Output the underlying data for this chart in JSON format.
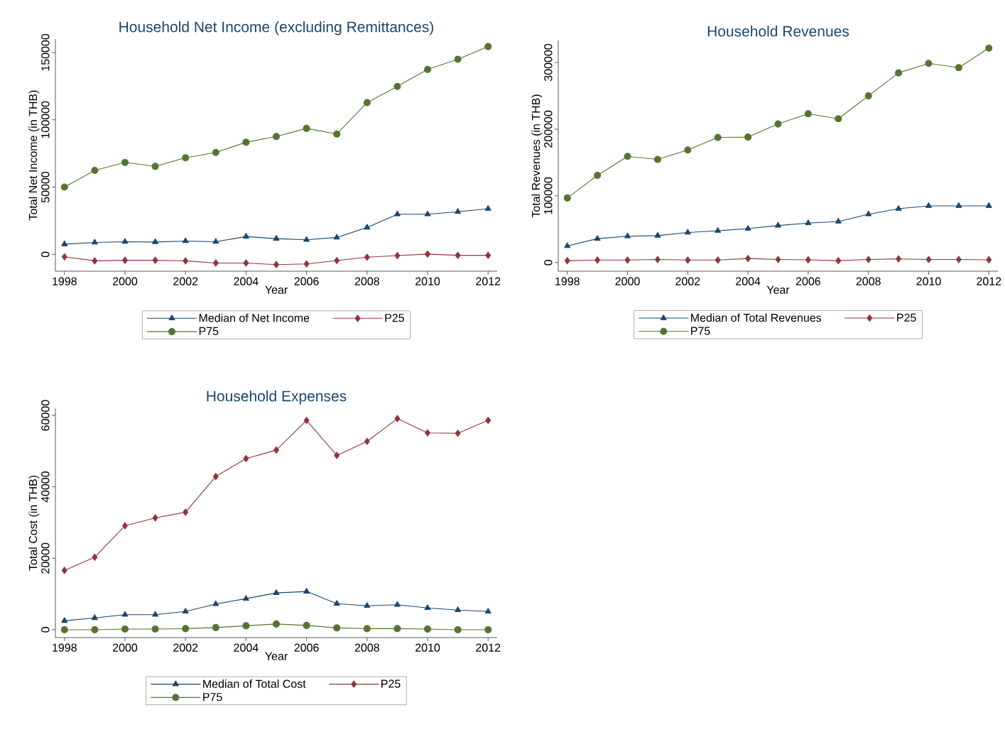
{
  "chart_data": [
    {
      "type": "line",
      "title": "Household Net Income (excluding Remittances)",
      "xlabel": "Year",
      "ylabel": "Total Net Income (in THB)",
      "legend": "bottom",
      "x": [
        1998,
        1999,
        2000,
        2001,
        2002,
        2003,
        2004,
        2005,
        2006,
        2007,
        2008,
        2009,
        2010,
        2011,
        2012
      ],
      "xlim": [
        1997.7,
        2012.3
      ],
      "xticks": [
        1998,
        2000,
        2002,
        2004,
        2006,
        2008,
        2010,
        2012
      ],
      "ylim": [
        -12500,
        160000
      ],
      "yticks": [
        0,
        50000,
        100000,
        150000
      ],
      "series": [
        {
          "name": "Median of Net Income",
          "color": "#1a476f",
          "marker": "triangle",
          "values": [
            7600,
            8900,
            9400,
            9200,
            9900,
            9400,
            13300,
            11700,
            10800,
            12600,
            20000,
            29800,
            29800,
            31700,
            33900
          ]
        },
        {
          "name": "P25",
          "color": "#90353b",
          "marker": "diamond",
          "values": [
            -1800,
            -4800,
            -4400,
            -4400,
            -4800,
            -6400,
            -6400,
            -7600,
            -7100,
            -4600,
            -2100,
            -900,
            200,
            -700,
            -700
          ]
        },
        {
          "name": "P75",
          "color": "#55752f",
          "marker": "circle",
          "values": [
            50000,
            62400,
            68300,
            65400,
            71800,
            75700,
            83300,
            87600,
            93600,
            89400,
            112800,
            124800,
            137400,
            145000,
            154400
          ]
        }
      ]
    },
    {
      "type": "line",
      "title": "Household Revenues",
      "xlabel": "Year",
      "ylabel": "Total Revenues (in THB)",
      "legend": "bottom",
      "x": [
        1998,
        1999,
        2000,
        2001,
        2002,
        2003,
        2004,
        2005,
        2006,
        2007,
        2008,
        2009,
        2010,
        2011,
        2012
      ],
      "xlim": [
        1997.7,
        2012.3
      ],
      "xticks": [
        1998,
        2000,
        2002,
        2004,
        2006,
        2008,
        2010,
        2012
      ],
      "ylim": [
        -13000,
        333000
      ],
      "yticks": [
        0,
        100000,
        200000,
        300000
      ],
      "series": [
        {
          "name": "Median of Total Revenues",
          "color": "#1a476f",
          "marker": "triangle",
          "values": [
            24800,
            35800,
            39400,
            40400,
            45000,
            47700,
            50900,
            55500,
            59200,
            61500,
            72500,
            80700,
            84900,
            84900,
            84900
          ]
        },
        {
          "name": "P25",
          "color": "#90353b",
          "marker": "diamond",
          "values": [
            2800,
            3700,
            3700,
            4600,
            3700,
            3700,
            6000,
            4600,
            4100,
            2800,
            4600,
            5500,
            4600,
            4600,
            4100
          ]
        },
        {
          "name": "P75",
          "color": "#55752f",
          "marker": "circle",
          "values": [
            96800,
            130700,
            159200,
            154600,
            168800,
            187600,
            188100,
            207800,
            223000,
            215600,
            250000,
            284400,
            298600,
            292200,
            321600
          ]
        }
      ]
    },
    {
      "type": "line",
      "title": "Household Expenses",
      "xlabel": "Year",
      "ylabel": "Total Cost (in THB)",
      "legend": "bottom",
      "x": [
        1998,
        1999,
        2000,
        2001,
        2002,
        2003,
        2004,
        2005,
        2006,
        2007,
        2008,
        2009,
        2010,
        2011,
        2012
      ],
      "xlim": [
        1997.7,
        2012.3
      ],
      "xticks": [
        1998,
        2000,
        2002,
        2004,
        2006,
        2008,
        2010,
        2012
      ],
      "ylim": [
        -2200,
        62000
      ],
      "yticks": [
        0,
        20000,
        40000,
        60000
      ],
      "series": [
        {
          "name": "Median of Total Cost",
          "color": "#1a476f",
          "marker": "triangle",
          "values": [
            2500,
            3300,
            4200,
            4200,
            5100,
            7200,
            8700,
            10300,
            10700,
            7300,
            6700,
            7000,
            6100,
            5500,
            5100
          ]
        },
        {
          "name": "P25",
          "color": "#90353b",
          "marker": "diamond",
          "values": [
            16600,
            20300,
            29100,
            31300,
            32900,
            42900,
            47900,
            50300,
            58600,
            48800,
            52700,
            59100,
            55100,
            55000,
            58600
          ]
        },
        {
          "name": "P75",
          "color": "#55752f",
          "marker": "circle",
          "values": [
            0,
            0,
            200,
            200,
            300,
            600,
            1100,
            1600,
            1200,
            500,
            300,
            300,
            200,
            0,
            0
          ]
        }
      ]
    }
  ]
}
